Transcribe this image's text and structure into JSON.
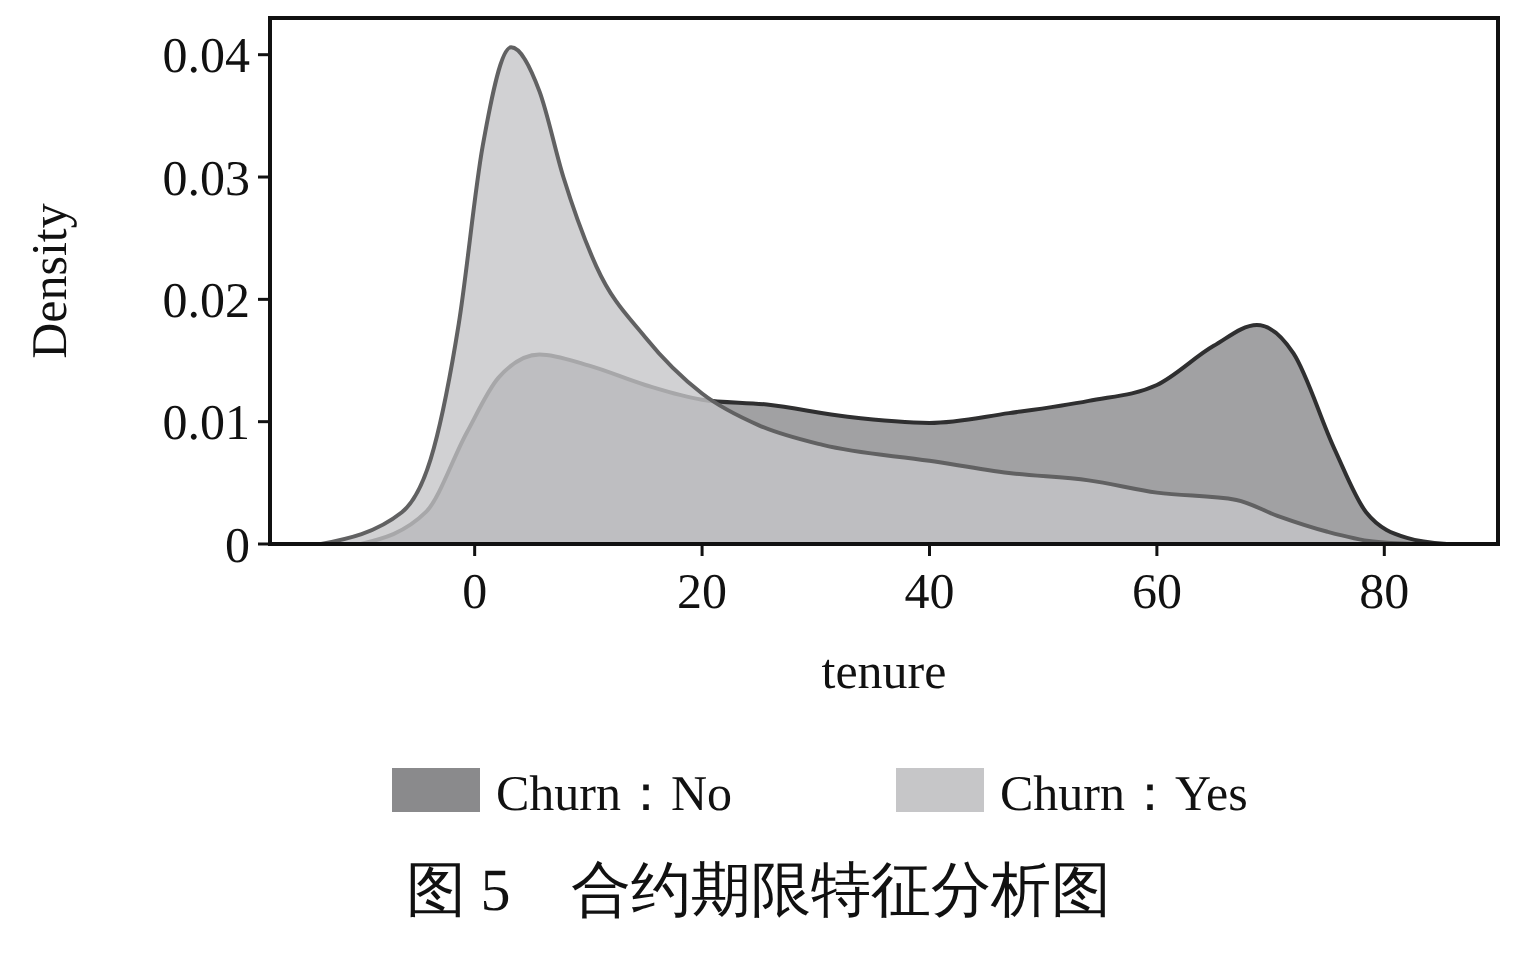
{
  "chart_data": {
    "type": "area",
    "xlabel": "tenure",
    "ylabel": "Density",
    "legend": "bottom",
    "xlim": [
      -18,
      90
    ],
    "ylim": [
      0,
      0.043
    ],
    "xticks": [
      0,
      20,
      40,
      60,
      80
    ],
    "yticks": [
      0,
      0.01,
      0.02,
      0.03,
      0.04
    ],
    "series": [
      {
        "name": "Churn：No",
        "color": "#8a8a8c",
        "x": [
          -10,
          -4.3,
          -0.7,
          2.1,
          5.7,
          10,
          15,
          20,
          25.7,
          32.8,
          40,
          47,
          54,
          60,
          65,
          68.8,
          72,
          75.6,
          78.4,
          82,
          85.5
        ],
        "values": [
          0,
          0.0026,
          0.0091,
          0.0136,
          0.0155,
          0.0146,
          0.013,
          0.0118,
          0.0114,
          0.0104,
          0.0099,
          0.0107,
          0.0117,
          0.013,
          0.0162,
          0.0179,
          0.0156,
          0.0078,
          0.0026,
          0.0005,
          0
        ]
      },
      {
        "name": "Churn：Yes",
        "color": "#c6c6c8",
        "x": [
          -13.5,
          -6.4,
          -3.6,
          -1.4,
          0.7,
          3.2,
          5.7,
          7.8,
          10.7,
          15,
          20,
          25,
          30.6,
          40,
          47,
          54,
          60,
          67,
          70.6,
          75,
          79,
          82.7
        ],
        "values": [
          0,
          0.0026,
          0.0078,
          0.018,
          0.0325,
          0.0406,
          0.037,
          0.03,
          0.0227,
          0.0169,
          0.0123,
          0.0097,
          0.0081,
          0.0068,
          0.0058,
          0.0052,
          0.0042,
          0.0036,
          0.0023,
          0.001,
          0.0002,
          0
        ]
      }
    ],
    "annotations": [
      "图 5　合约期限特征分析图"
    ]
  }
}
